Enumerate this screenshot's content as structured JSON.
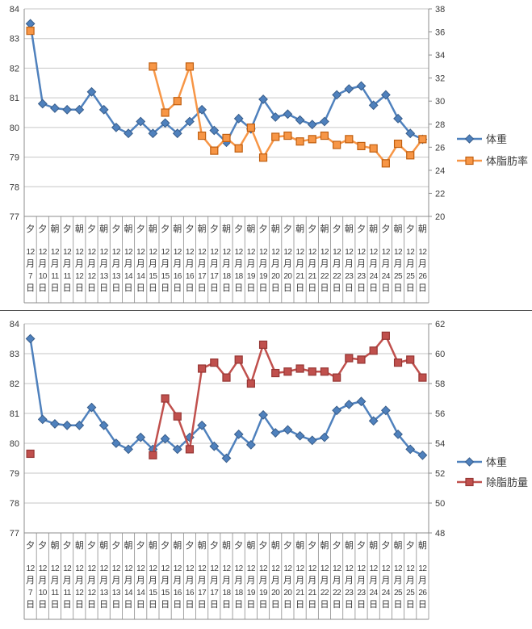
{
  "page": {
    "background": "#FFFFFF",
    "divider_color": "#4D4D4D"
  },
  "style": {
    "gridline_color": "#C6C6C6",
    "axis_color": "#8C8C8C",
    "text_color": "#3A3A3A"
  },
  "chart_data": [
    {
      "type": "line",
      "title": "",
      "legend_position": "right",
      "left_axis": {
        "min": 77,
        "max": 84,
        "step": 1,
        "ticks": [
          84,
          83,
          82,
          81,
          80,
          79,
          78,
          77
        ]
      },
      "right_axis": {
        "min": 20,
        "max": 38,
        "step": 2,
        "ticks": [
          38,
          36,
          34,
          32,
          30,
          28,
          26,
          24,
          22,
          20
        ]
      },
      "categories_period": [
        "夕",
        "夕",
        "朝",
        "夕",
        "朝",
        "夕",
        "朝",
        "夕",
        "朝",
        "夕",
        "朝",
        "夕",
        "朝",
        "夕",
        "朝",
        "夕",
        "朝",
        "夕",
        "朝",
        "夕",
        "朝",
        "夕",
        "朝",
        "夕",
        "朝",
        "夕",
        "朝",
        "夕",
        "朝",
        "夕",
        "朝",
        "夕",
        "朝"
      ],
      "categories_date": [
        "12月7日",
        "12月10日",
        "12月11日",
        "12月11日",
        "12月12日",
        "12月12日",
        "12月13日",
        "12月13日",
        "12月14日",
        "12月14日",
        "12月15日",
        "12月15日",
        "12月16日",
        "12月16日",
        "12月17日",
        "12月17日",
        "12月18日",
        "12月18日",
        "12月19日",
        "12月19日",
        "12月20日",
        "12月20日",
        "12月21日",
        "12月21日",
        "12月22日",
        "12月22日",
        "12月23日",
        "12月23日",
        "12月24日",
        "12月24日",
        "12月25日",
        "12月25日",
        "12月26日"
      ],
      "series": [
        {
          "name": "体重",
          "axis": "left",
          "marker": "diamond",
          "color": "#4F81BD",
          "marker_stroke": "#385D8A",
          "values": [
            83.5,
            80.8,
            80.65,
            80.6,
            80.6,
            81.2,
            80.6,
            80.0,
            79.8,
            80.2,
            79.8,
            80.15,
            79.8,
            80.2,
            80.6,
            79.9,
            79.5,
            80.3,
            79.95,
            80.95,
            80.35,
            80.45,
            80.25,
            80.1,
            80.2,
            81.1,
            81.3,
            81.4,
            80.75,
            81.1,
            80.3,
            79.8,
            79.6
          ]
        },
        {
          "name": "体脂肪率",
          "axis": "right",
          "marker": "square",
          "color": "#F79646",
          "marker_stroke": "#C05F10",
          "values": [
            36.1,
            null,
            null,
            null,
            null,
            null,
            null,
            null,
            null,
            null,
            33.0,
            29.0,
            30.0,
            33.0,
            27.0,
            25.7,
            26.8,
            25.9,
            27.7,
            25.1,
            26.9,
            27.0,
            26.5,
            26.7,
            27.0,
            26.2,
            26.7,
            26.1,
            25.9,
            24.6,
            26.3,
            25.3,
            26.7
          ]
        }
      ]
    },
    {
      "type": "line",
      "title": "",
      "legend_position": "right",
      "left_axis": {
        "min": 77,
        "max": 84,
        "step": 1,
        "ticks": [
          84,
          83,
          82,
          81,
          80,
          79,
          78,
          77
        ]
      },
      "right_axis": {
        "min": 48,
        "max": 62,
        "step": 2,
        "ticks": [
          62,
          60,
          58,
          56,
          54,
          52,
          50,
          48
        ]
      },
      "categories_period": [
        "夕",
        "夕",
        "朝",
        "夕",
        "朝",
        "夕",
        "朝",
        "夕",
        "朝",
        "夕",
        "朝",
        "夕",
        "朝",
        "夕",
        "朝",
        "夕",
        "朝",
        "夕",
        "朝",
        "夕",
        "朝",
        "夕",
        "朝",
        "夕",
        "朝",
        "夕",
        "朝",
        "夕",
        "朝",
        "夕",
        "朝",
        "夕",
        "朝"
      ],
      "categories_date": [
        "12月7日",
        "12月10日",
        "12月11日",
        "12月11日",
        "12月12日",
        "12月12日",
        "12月13日",
        "12月13日",
        "12月14日",
        "12月14日",
        "12月15日",
        "12月15日",
        "12月16日",
        "12月16日",
        "12月17日",
        "12月17日",
        "12月18日",
        "12月18日",
        "12月19日",
        "12月19日",
        "12月20日",
        "12月20日",
        "12月21日",
        "12月21日",
        "12月22日",
        "12月22日",
        "12月23日",
        "12月23日",
        "12月24日",
        "12月24日",
        "12月25日",
        "12月25日",
        "12月26日"
      ],
      "series": [
        {
          "name": "体重",
          "axis": "left",
          "marker": "diamond",
          "color": "#4F81BD",
          "marker_stroke": "#385D8A",
          "values": [
            83.5,
            80.8,
            80.65,
            80.6,
            80.6,
            81.2,
            80.6,
            80.0,
            79.8,
            80.2,
            79.8,
            80.15,
            79.8,
            80.2,
            80.6,
            79.9,
            79.5,
            80.3,
            79.95,
            80.95,
            80.35,
            80.45,
            80.25,
            80.1,
            80.2,
            81.1,
            81.3,
            81.4,
            80.75,
            81.1,
            80.3,
            79.8,
            79.6
          ]
        },
        {
          "name": "除脂肪量",
          "axis": "right",
          "marker": "square",
          "color": "#C0504D",
          "marker_stroke": "#963634",
          "values": [
            53.3,
            null,
            null,
            null,
            null,
            null,
            null,
            null,
            null,
            null,
            53.2,
            57.0,
            55.8,
            53.6,
            59.0,
            59.4,
            58.4,
            59.6,
            58.0,
            60.6,
            58.7,
            58.8,
            59.0,
            58.8,
            58.8,
            58.4,
            59.7,
            59.6,
            60.2,
            61.2,
            59.4,
            59.6,
            58.4
          ]
        }
      ]
    }
  ]
}
